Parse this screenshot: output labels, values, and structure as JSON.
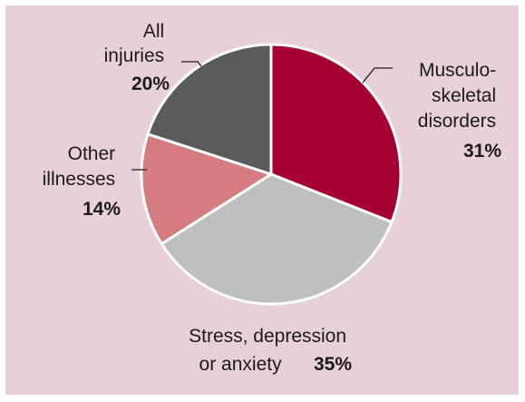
{
  "chart_data": {
    "type": "pie",
    "slices": [
      {
        "label_lines": [
          "Musculo-",
          "skeletal",
          "disorders"
        ],
        "percent_label": "31%",
        "value": 31,
        "color": "#a50034"
      },
      {
        "label_lines": [
          "Stress, depression",
          "or anxiety"
        ],
        "percent_label": "35%",
        "value": 35,
        "color": "#bebfc1"
      },
      {
        "label_lines": [
          "Other",
          "illnesses"
        ],
        "percent_label": "14%",
        "value": 14,
        "color": "#d47c7f"
      },
      {
        "label_lines": [
          "All",
          "injuries"
        ],
        "percent_label": "20%",
        "value": 20,
        "color": "#5a5b5d"
      }
    ],
    "start_angle_deg": 0,
    "direction": "clockwise",
    "background_color": "#e7d0d7"
  }
}
